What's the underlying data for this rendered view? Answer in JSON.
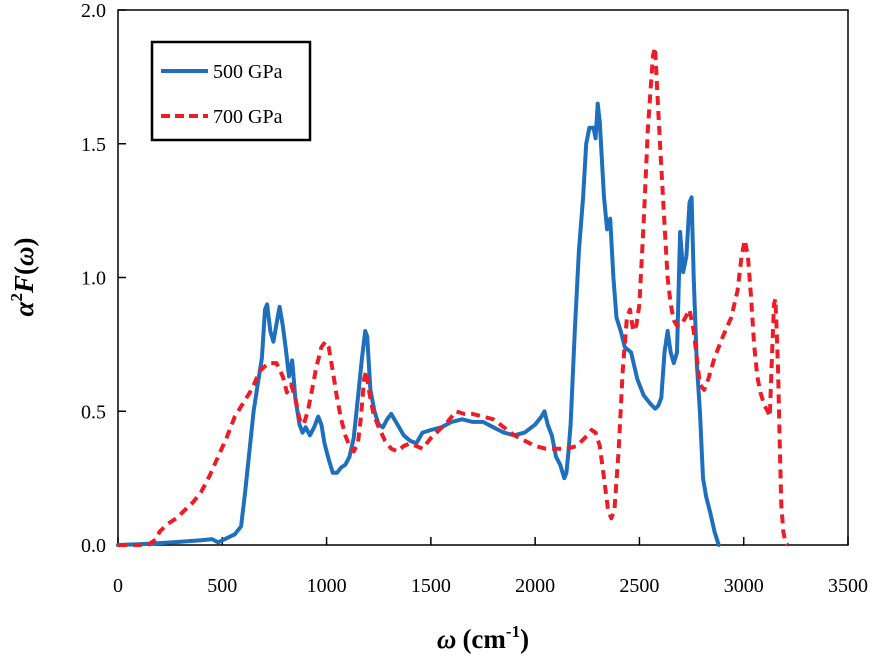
{
  "chart_data": {
    "type": "line",
    "title": "",
    "xlabel": {
      "symbol": "ω",
      "unit_prefix": "(cm",
      "unit_exp": "-1",
      "unit_suffix": ")"
    },
    "ylabel": {
      "symbol": "α",
      "exp": "2",
      "func": "F",
      "open": "(",
      "arg": "ω",
      "close": ")"
    },
    "xlim": [
      0,
      3500
    ],
    "ylim": [
      0,
      2.0
    ],
    "xticks": [
      0,
      500,
      1000,
      1500,
      2000,
      2500,
      3000,
      3500
    ],
    "yticks": [
      0,
      0.5,
      1.0,
      1.5,
      2.0
    ],
    "x_tick_labels": [
      "0",
      "500",
      "1000",
      "1500",
      "2000",
      "2500",
      "3000",
      "3500"
    ],
    "y_tick_labels": [
      "0.0",
      "0.5",
      "1.0",
      "1.5",
      "2.0"
    ],
    "grid": false,
    "legend_position": "top-left",
    "series": [
      {
        "name": "500 GPa",
        "color": "#1f6fbf",
        "style": "solid",
        "points": [
          [
            0,
            0
          ],
          [
            100,
            0.003
          ],
          [
            200,
            0.007
          ],
          [
            300,
            0.012
          ],
          [
            400,
            0.018
          ],
          [
            450,
            0.022
          ],
          [
            480,
            0.01
          ],
          [
            520,
            0.025
          ],
          [
            560,
            0.04
          ],
          [
            590,
            0.07
          ],
          [
            610,
            0.2
          ],
          [
            630,
            0.35
          ],
          [
            650,
            0.5
          ],
          [
            670,
            0.6
          ],
          [
            690,
            0.7
          ],
          [
            705,
            0.88
          ],
          [
            715,
            0.9
          ],
          [
            730,
            0.8
          ],
          [
            745,
            0.76
          ],
          [
            765,
            0.85
          ],
          [
            775,
            0.89
          ],
          [
            790,
            0.82
          ],
          [
            805,
            0.73
          ],
          [
            820,
            0.63
          ],
          [
            835,
            0.69
          ],
          [
            850,
            0.55
          ],
          [
            870,
            0.45
          ],
          [
            885,
            0.42
          ],
          [
            900,
            0.44
          ],
          [
            920,
            0.41
          ],
          [
            940,
            0.44
          ],
          [
            960,
            0.48
          ],
          [
            975,
            0.45
          ],
          [
            990,
            0.38
          ],
          [
            1010,
            0.32
          ],
          [
            1030,
            0.27
          ],
          [
            1050,
            0.27
          ],
          [
            1070,
            0.29
          ],
          [
            1090,
            0.3
          ],
          [
            1110,
            0.33
          ],
          [
            1130,
            0.4
          ],
          [
            1150,
            0.55
          ],
          [
            1170,
            0.7
          ],
          [
            1185,
            0.8
          ],
          [
            1195,
            0.78
          ],
          [
            1210,
            0.58
          ],
          [
            1230,
            0.5
          ],
          [
            1250,
            0.45
          ],
          [
            1270,
            0.44
          ],
          [
            1290,
            0.47
          ],
          [
            1310,
            0.49
          ],
          [
            1340,
            0.45
          ],
          [
            1370,
            0.41
          ],
          [
            1400,
            0.39
          ],
          [
            1430,
            0.38
          ],
          [
            1460,
            0.42
          ],
          [
            1500,
            0.43
          ],
          [
            1550,
            0.44
          ],
          [
            1600,
            0.46
          ],
          [
            1650,
            0.47
          ],
          [
            1700,
            0.46
          ],
          [
            1750,
            0.46
          ],
          [
            1800,
            0.44
          ],
          [
            1850,
            0.42
          ],
          [
            1900,
            0.41
          ],
          [
            1950,
            0.42
          ],
          [
            2000,
            0.45
          ],
          [
            2030,
            0.48
          ],
          [
            2045,
            0.5
          ],
          [
            2060,
            0.45
          ],
          [
            2080,
            0.41
          ],
          [
            2100,
            0.33
          ],
          [
            2120,
            0.3
          ],
          [
            2140,
            0.25
          ],
          [
            2150,
            0.27
          ],
          [
            2160,
            0.35
          ],
          [
            2170,
            0.45
          ],
          [
            2190,
            0.8
          ],
          [
            2210,
            1.1
          ],
          [
            2230,
            1.3
          ],
          [
            2245,
            1.5
          ],
          [
            2260,
            1.56
          ],
          [
            2280,
            1.56
          ],
          [
            2290,
            1.52
          ],
          [
            2300,
            1.65
          ],
          [
            2310,
            1.58
          ],
          [
            2330,
            1.3
          ],
          [
            2345,
            1.18
          ],
          [
            2360,
            1.22
          ],
          [
            2375,
            1.0
          ],
          [
            2390,
            0.85
          ],
          [
            2410,
            0.8
          ],
          [
            2430,
            0.74
          ],
          [
            2460,
            0.72
          ],
          [
            2490,
            0.62
          ],
          [
            2520,
            0.56
          ],
          [
            2550,
            0.53
          ],
          [
            2575,
            0.51
          ],
          [
            2590,
            0.52
          ],
          [
            2605,
            0.55
          ],
          [
            2620,
            0.72
          ],
          [
            2635,
            0.8
          ],
          [
            2650,
            0.72
          ],
          [
            2665,
            0.68
          ],
          [
            2680,
            0.72
          ],
          [
            2695,
            1.17
          ],
          [
            2710,
            1.02
          ],
          [
            2725,
            1.08
          ],
          [
            2740,
            1.28
          ],
          [
            2750,
            1.3
          ],
          [
            2760,
            1.0
          ],
          [
            2775,
            0.68
          ],
          [
            2790,
            0.5
          ],
          [
            2805,
            0.25
          ],
          [
            2820,
            0.18
          ],
          [
            2840,
            0.12
          ],
          [
            2860,
            0.05
          ],
          [
            2880,
            0
          ]
        ]
      },
      {
        "name": "700 GPa",
        "color": "#ee1c25",
        "style": "dashed",
        "points": [
          [
            0,
            0
          ],
          [
            100,
            0
          ],
          [
            150,
            0.003
          ],
          [
            180,
            0.02
          ],
          [
            200,
            0.05
          ],
          [
            240,
            0.08
          ],
          [
            280,
            0.1
          ],
          [
            320,
            0.13
          ],
          [
            360,
            0.16
          ],
          [
            400,
            0.2
          ],
          [
            440,
            0.26
          ],
          [
            480,
            0.33
          ],
          [
            520,
            0.4
          ],
          [
            560,
            0.48
          ],
          [
            600,
            0.53
          ],
          [
            640,
            0.58
          ],
          [
            680,
            0.65
          ],
          [
            720,
            0.68
          ],
          [
            760,
            0.68
          ],
          [
            790,
            0.63
          ],
          [
            810,
            0.57
          ],
          [
            830,
            0.6
          ],
          [
            850,
            0.55
          ],
          [
            870,
            0.47
          ],
          [
            890,
            0.45
          ],
          [
            910,
            0.5
          ],
          [
            930,
            0.58
          ],
          [
            950,
            0.66
          ],
          [
            975,
            0.74
          ],
          [
            995,
            0.76
          ],
          [
            1010,
            0.74
          ],
          [
            1030,
            0.65
          ],
          [
            1050,
            0.55
          ],
          [
            1070,
            0.47
          ],
          [
            1090,
            0.41
          ],
          [
            1110,
            0.37
          ],
          [
            1130,
            0.35
          ],
          [
            1150,
            0.38
          ],
          [
            1165,
            0.48
          ],
          [
            1180,
            0.62
          ],
          [
            1190,
            0.65
          ],
          [
            1205,
            0.57
          ],
          [
            1225,
            0.49
          ],
          [
            1250,
            0.44
          ],
          [
            1280,
            0.39
          ],
          [
            1310,
            0.36
          ],
          [
            1340,
            0.35
          ],
          [
            1370,
            0.37
          ],
          [
            1400,
            0.38
          ],
          [
            1430,
            0.37
          ],
          [
            1460,
            0.36
          ],
          [
            1500,
            0.4
          ],
          [
            1540,
            0.43
          ],
          [
            1580,
            0.46
          ],
          [
            1620,
            0.5
          ],
          [
            1660,
            0.49
          ],
          [
            1700,
            0.49
          ],
          [
            1750,
            0.48
          ],
          [
            1800,
            0.47
          ],
          [
            1850,
            0.44
          ],
          [
            1900,
            0.41
          ],
          [
            1950,
            0.39
          ],
          [
            2000,
            0.37
          ],
          [
            2050,
            0.36
          ],
          [
            2100,
            0.36
          ],
          [
            2150,
            0.36
          ],
          [
            2200,
            0.37
          ],
          [
            2250,
            0.41
          ],
          [
            2270,
            0.43
          ],
          [
            2290,
            0.42
          ],
          [
            2310,
            0.37
          ],
          [
            2330,
            0.25
          ],
          [
            2350,
            0.13
          ],
          [
            2365,
            0.1
          ],
          [
            2380,
            0.13
          ],
          [
            2400,
            0.35
          ],
          [
            2420,
            0.65
          ],
          [
            2440,
            0.85
          ],
          [
            2455,
            0.88
          ],
          [
            2470,
            0.8
          ],
          [
            2485,
            0.82
          ],
          [
            2500,
            0.9
          ],
          [
            2520,
            1.2
          ],
          [
            2540,
            1.55
          ],
          [
            2555,
            1.72
          ],
          [
            2565,
            1.83
          ],
          [
            2575,
            1.86
          ],
          [
            2585,
            1.7
          ],
          [
            2600,
            1.48
          ],
          [
            2620,
            1.2
          ],
          [
            2635,
            1.0
          ],
          [
            2650,
            0.9
          ],
          [
            2665,
            0.84
          ],
          [
            2680,
            0.82
          ],
          [
            2700,
            0.82
          ],
          [
            2720,
            0.85
          ],
          [
            2740,
            0.88
          ],
          [
            2760,
            0.8
          ],
          [
            2775,
            0.7
          ],
          [
            2790,
            0.6
          ],
          [
            2810,
            0.58
          ],
          [
            2830,
            0.62
          ],
          [
            2860,
            0.7
          ],
          [
            2900,
            0.78
          ],
          [
            2940,
            0.85
          ],
          [
            2970,
            0.95
          ],
          [
            2990,
            1.08
          ],
          [
            3005,
            1.14
          ],
          [
            3020,
            1.08
          ],
          [
            3035,
            0.93
          ],
          [
            3050,
            0.75
          ],
          [
            3065,
            0.63
          ],
          [
            3080,
            0.57
          ],
          [
            3100,
            0.52
          ],
          [
            3115,
            0.5
          ],
          [
            3125,
            0.48
          ],
          [
            3135,
            0.7
          ],
          [
            3145,
            0.9
          ],
          [
            3152,
            0.92
          ],
          [
            3158,
            0.8
          ],
          [
            3165,
            0.65
          ],
          [
            3172,
            0.4
          ],
          [
            3180,
            0.15
          ],
          [
            3190,
            0.05
          ],
          [
            3200,
            0.01
          ],
          [
            3210,
            0
          ]
        ]
      }
    ]
  }
}
